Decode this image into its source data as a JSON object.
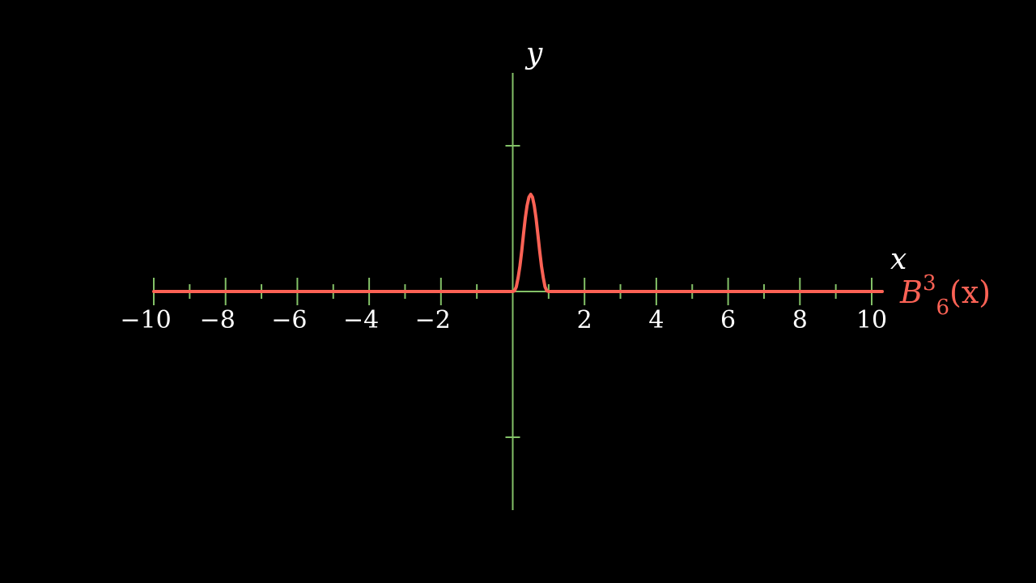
{
  "chart_data": {
    "type": "line",
    "xlim": [
      -10,
      10
    ],
    "ylim": [
      -1.5,
      1.5
    ],
    "xlabel": "x",
    "ylabel": "y",
    "x_tick_labels": [
      "−10",
      "−8",
      "−6",
      "−4",
      "−2",
      "2",
      "4",
      "6",
      "8",
      "10"
    ],
    "x_tick_values": [
      -10,
      -8,
      -6,
      -4,
      -2,
      2,
      4,
      6,
      8,
      10
    ],
    "x_minor_tick_step": 1,
    "y_tick_values": [
      -1,
      1
    ],
    "grid": false,
    "axis_color": "#83c167",
    "series": [
      {
        "label": {
          "base": "B",
          "subscript": "6",
          "superscript": "3",
          "argument": "(x)"
        },
        "color": "#fc6255",
        "formula_note": "Bernstein basis polynomial, degree 6, index 3, nonzero on [0,1]",
        "x": [
          -10,
          0,
          0.05,
          0.1,
          0.15,
          0.2,
          0.25,
          0.3,
          0.35,
          0.4,
          0.45,
          0.5,
          0.55,
          0.6,
          0.65,
          0.7,
          0.75,
          0.8,
          0.85,
          0.9,
          0.95,
          1,
          10
        ],
        "y": [
          0,
          0,
          0.002,
          0.015,
          0.045,
          0.082,
          0.13,
          0.185,
          0.236,
          0.276,
          0.303,
          0.3125,
          0.303,
          0.276,
          0.236,
          0.185,
          0.13,
          0.082,
          0.045,
          0.015,
          0.002,
          0,
          0
        ]
      }
    ]
  }
}
